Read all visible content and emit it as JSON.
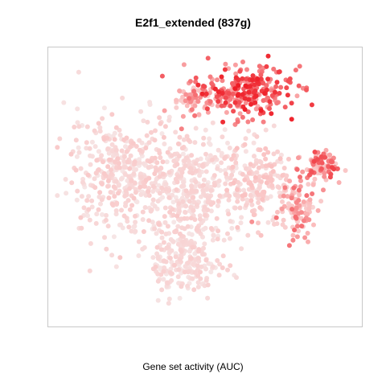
{
  "chart_data": {
    "type": "scatter",
    "title": "E2f1_extended (837g)",
    "xlabel": "Gene set activity (AUC)",
    "ylabel": "",
    "grid": false,
    "legend": "none",
    "colors": {
      "low": "#f6e6e6",
      "mid": "#fbbcbc",
      "high": "#ee1c25",
      "frame": "#c8c8c8"
    },
    "xlim": [
      0,
      100
    ],
    "ylim": [
      0,
      100
    ],
    "clusters": [
      {
        "name": "top-right-high",
        "cx": 63,
        "cy": 86,
        "rx": 13,
        "ry": 8,
        "n": 260,
        "level": [
          0.55,
          1.0
        ]
      },
      {
        "name": "top-left-mid",
        "cx": 46,
        "cy": 82,
        "rx": 6,
        "ry": 6,
        "n": 60,
        "level": [
          0.25,
          0.75
        ]
      },
      {
        "name": "far-right",
        "cx": 88,
        "cy": 58,
        "rx": 6,
        "ry": 4,
        "n": 90,
        "level": [
          0.3,
          0.9
        ]
      },
      {
        "name": "right-lower",
        "cx": 80,
        "cy": 42,
        "rx": 6,
        "ry": 10,
        "n": 110,
        "level": [
          0.2,
          0.75
        ]
      },
      {
        "name": "left-body",
        "cx": 22,
        "cy": 55,
        "rx": 15,
        "ry": 18,
        "n": 360,
        "level": [
          0.0,
          0.35
        ]
      },
      {
        "name": "center-body",
        "cx": 46,
        "cy": 50,
        "rx": 16,
        "ry": 18,
        "n": 420,
        "level": [
          0.0,
          0.3
        ]
      },
      {
        "name": "lower-stem",
        "cx": 44,
        "cy": 22,
        "rx": 10,
        "ry": 12,
        "n": 220,
        "level": [
          0.0,
          0.3
        ]
      },
      {
        "name": "mid-right",
        "cx": 68,
        "cy": 52,
        "rx": 8,
        "ry": 12,
        "n": 160,
        "level": [
          0.05,
          0.45
        ]
      }
    ]
  }
}
